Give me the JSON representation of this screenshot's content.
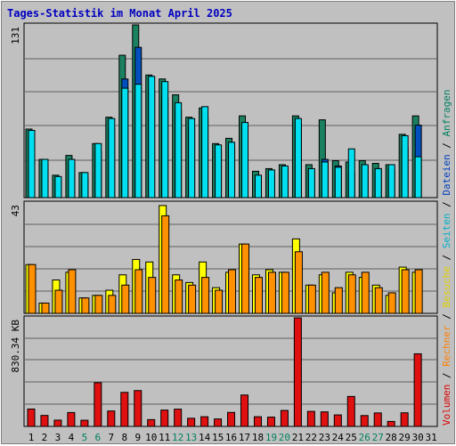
{
  "title": "Tages-Statistik im Monat April 2025",
  "legend": {
    "items": [
      {
        "label": "Volumen",
        "color": "#e00000"
      },
      {
        "label": " / ",
        "color": "#000000"
      },
      {
        "label": "Rechner",
        "color": "#ff8000"
      },
      {
        "label": " / ",
        "color": "#000000"
      },
      {
        "label": "Besuche",
        "color": "#e0d000"
      },
      {
        "label": " / ",
        "color": "#000000"
      },
      {
        "label": "Seiten",
        "color": "#00b0c8"
      },
      {
        "label": " / ",
        "color": "#000000"
      },
      {
        "label": "Dateien",
        "color": "#0040c0"
      },
      {
        "label": " / ",
        "color": "#000000"
      },
      {
        "label": "Anfragen",
        "color": "#008060"
      }
    ]
  },
  "colors": {
    "anfragen": "#1a8060",
    "dateien": "#0050c0",
    "seiten": "#00e0f0",
    "besuche": "#ffff00",
    "rechner": "#ff9000",
    "volumen": "#e01010",
    "weekday": "#000000",
    "weekend": "#008060"
  },
  "chart_data": [
    {
      "type": "bar",
      "name": "hits",
      "ymax_label": "131",
      "ylim": [
        0,
        131
      ],
      "categories": [
        "1",
        "2",
        "3",
        "4",
        "5",
        "6",
        "7",
        "8",
        "9",
        "10",
        "11",
        "12",
        "13",
        "14",
        "15",
        "16",
        "17",
        "18",
        "19",
        "20",
        "21",
        "22",
        "23",
        "24",
        "25",
        "26",
        "27",
        "28",
        "29",
        "30",
        "31"
      ],
      "series": [
        {
          "name": "Anfragen",
          "values": [
            52,
            29,
            17,
            32,
            19,
            41,
            61,
            108,
            131,
            93,
            90,
            78,
            61,
            68,
            41,
            45,
            62,
            20,
            22,
            25,
            62,
            25,
            59,
            28,
            27,
            28,
            26,
            25,
            48,
            62,
            0
          ]
        },
        {
          "name": "Dateien",
          "values": [
            44,
            25,
            13,
            26,
            15,
            35,
            52,
            90,
            114,
            81,
            76,
            66,
            54,
            60,
            35,
            37,
            50,
            15,
            17,
            21,
            56,
            20,
            29,
            24,
            19,
            24,
            22,
            21,
            38,
            55,
            0
          ]
        },
        {
          "name": "Seiten",
          "values": [
            51,
            29,
            16,
            29,
            19,
            41,
            60,
            83,
            86,
            92,
            88,
            72,
            60,
            69,
            40,
            42,
            57,
            17,
            21,
            24,
            60,
            22,
            27,
            23,
            37,
            25,
            22,
            25,
            47,
            31,
            0
          ]
        }
      ]
    },
    {
      "type": "bar",
      "name": "visits",
      "ymax_label": "43",
      "ylim": [
        0,
        43
      ],
      "categories": [
        "1",
        "2",
        "3",
        "4",
        "5",
        "6",
        "7",
        "8",
        "9",
        "10",
        "11",
        "12",
        "13",
        "14",
        "15",
        "16",
        "17",
        "18",
        "19",
        "20",
        "21",
        "22",
        "23",
        "24",
        "25",
        "26",
        "27",
        "28",
        "29",
        "30",
        "31"
      ],
      "series": [
        {
          "name": "Besuche",
          "values": [
            19,
            4,
            13,
            16,
            6,
            7,
            9,
            15,
            21,
            20,
            42,
            15,
            12,
            20,
            10,
            16,
            27,
            15,
            17,
            16,
            29,
            11,
            15,
            8,
            16,
            14,
            11,
            7,
            18,
            16,
            0
          ]
        },
        {
          "name": "Rechner",
          "values": [
            19,
            4,
            9,
            17,
            6,
            7,
            7,
            11,
            17,
            14,
            38,
            13,
            11,
            14,
            9,
            17,
            27,
            14,
            16,
            16,
            24,
            11,
            16,
            10,
            15,
            16,
            10,
            8,
            17,
            17,
            0
          ]
        }
      ]
    },
    {
      "type": "bar",
      "name": "volume",
      "ymax_label": "830.34 KB",
      "ylim": [
        0,
        830.34
      ],
      "categories": [
        "1",
        "2",
        "3",
        "4",
        "5",
        "6",
        "7",
        "8",
        "9",
        "10",
        "11",
        "12",
        "13",
        "14",
        "15",
        "16",
        "17",
        "18",
        "19",
        "20",
        "21",
        "22",
        "23",
        "24",
        "25",
        "26",
        "27",
        "28",
        "29",
        "30",
        "31"
      ],
      "series": [
        {
          "name": "Volumen",
          "values": [
            133,
            84,
            48,
            106,
            47,
            334,
            118,
            260,
            274,
            52,
            125,
            132,
            62,
            74,
            57,
            107,
            240,
            74,
            71,
            122,
            830,
            115,
            111,
            88,
            229,
            83,
            103,
            38,
            104,
            555,
            0
          ]
        }
      ]
    }
  ],
  "x_labels": [
    {
      "t": "1",
      "we": false
    },
    {
      "t": "2",
      "we": false
    },
    {
      "t": "3",
      "we": false
    },
    {
      "t": "4",
      "we": false
    },
    {
      "t": "5",
      "we": true
    },
    {
      "t": "6",
      "we": true
    },
    {
      "t": "7",
      "we": false
    },
    {
      "t": "8",
      "we": false
    },
    {
      "t": "9",
      "we": false
    },
    {
      "t": "10",
      "we": false
    },
    {
      "t": "11",
      "we": false
    },
    {
      "t": "12",
      "we": true
    },
    {
      "t": "13",
      "we": true
    },
    {
      "t": "14",
      "we": false
    },
    {
      "t": "15",
      "we": false
    },
    {
      "t": "16",
      "we": false
    },
    {
      "t": "17",
      "we": false
    },
    {
      "t": "18",
      "we": false
    },
    {
      "t": "19",
      "we": true
    },
    {
      "t": "20",
      "we": true
    },
    {
      "t": "21",
      "we": false
    },
    {
      "t": "22",
      "we": false
    },
    {
      "t": "23",
      "we": false
    },
    {
      "t": "24",
      "we": false
    },
    {
      "t": "25",
      "we": false
    },
    {
      "t": "26",
      "we": true
    },
    {
      "t": "27",
      "we": true
    },
    {
      "t": "28",
      "we": false
    },
    {
      "t": "29",
      "we": false
    },
    {
      "t": "30",
      "we": false
    },
    {
      "t": "31",
      "we": false
    }
  ]
}
